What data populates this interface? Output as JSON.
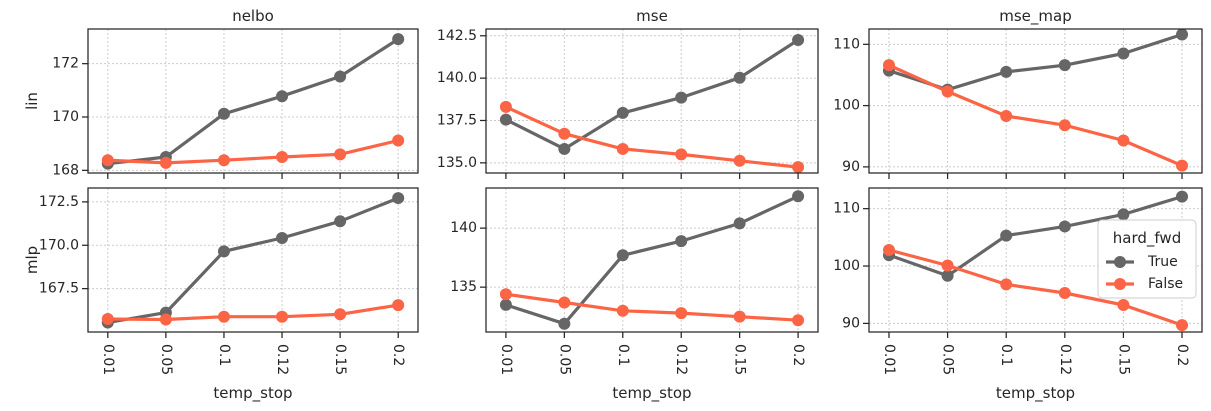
{
  "figure": {
    "xlabel": "temp_stop",
    "row_labels": [
      "lin",
      "mlp"
    ],
    "col_titles": [
      "nelbo",
      "mse",
      "mse_map"
    ]
  },
  "legend": {
    "title": "hard_fwd",
    "entries": [
      {
        "label": "True",
        "color": "#666666"
      },
      {
        "label": "False",
        "color": "#fc6446"
      }
    ]
  },
  "colors": {
    "true": "#666666",
    "false": "#fc6446",
    "grid": "#cccccc",
    "axis": "#262626"
  },
  "chart_data": [
    {
      "type": "line",
      "title": "nelbo",
      "xlabel": "",
      "ylabel": "lin",
      "categories": [
        "0.01",
        "0.05",
        "0.1",
        "0.12",
        "0.15",
        "0.2"
      ],
      "ylim": [
        167.9,
        173.3
      ],
      "yticks": [
        168,
        170,
        172
      ],
      "ytick_labels": [
        "168",
        "170",
        "172"
      ],
      "series": [
        {
          "name": "True",
          "values": [
            168.25,
            168.5,
            170.12,
            170.78,
            171.52,
            172.92
          ]
        },
        {
          "name": "False",
          "values": [
            168.38,
            168.28,
            168.38,
            168.5,
            168.6,
            169.12
          ]
        }
      ]
    },
    {
      "type": "line",
      "title": "mse",
      "xlabel": "",
      "ylabel": "",
      "categories": [
        "0.01",
        "0.05",
        "0.1",
        "0.12",
        "0.15",
        "0.2"
      ],
      "ylim": [
        134.4,
        142.9
      ],
      "yticks": [
        135.0,
        137.5,
        140.0,
        142.5
      ],
      "ytick_labels": [
        "135.0",
        "137.5",
        "140.0",
        "142.5"
      ],
      "series": [
        {
          "name": "True",
          "values": [
            137.55,
            135.82,
            137.95,
            138.85,
            140.02,
            142.25
          ]
        },
        {
          "name": "False",
          "values": [
            138.3,
            136.72,
            135.82,
            135.5,
            135.12,
            134.75
          ]
        }
      ]
    },
    {
      "type": "line",
      "title": "mse_map",
      "xlabel": "",
      "ylabel": "",
      "categories": [
        "0.01",
        "0.05",
        "0.1",
        "0.12",
        "0.15",
        "0.2"
      ],
      "ylim": [
        89.0,
        112.5
      ],
      "yticks": [
        90,
        100,
        110
      ],
      "ytick_labels": [
        "90",
        "100",
        "110"
      ],
      "series": [
        {
          "name": "True",
          "values": [
            105.7,
            102.6,
            105.5,
            106.6,
            108.5,
            111.6
          ]
        },
        {
          "name": "False",
          "values": [
            106.6,
            102.3,
            98.3,
            96.8,
            94.3,
            90.2
          ]
        }
      ]
    },
    {
      "type": "line",
      "title": "",
      "xlabel": "temp_stop",
      "ylabel": "mlp",
      "categories": [
        "0.01",
        "0.05",
        "0.1",
        "0.12",
        "0.15",
        "0.2"
      ],
      "ylim": [
        165.0,
        173.3
      ],
      "yticks": [
        167.5,
        170.0,
        172.5
      ],
      "ytick_labels": [
        "167.5",
        "170.0",
        "172.5"
      ],
      "series": [
        {
          "name": "True",
          "values": [
            165.55,
            166.12,
            169.65,
            170.42,
            171.38,
            172.72
          ]
        },
        {
          "name": "False",
          "values": [
            165.75,
            165.72,
            165.88,
            165.88,
            166.02,
            166.55
          ]
        }
      ]
    },
    {
      "type": "line",
      "title": "",
      "xlabel": "temp_stop",
      "ylabel": "",
      "categories": [
        "0.01",
        "0.05",
        "0.1",
        "0.12",
        "0.15",
        "0.2"
      ],
      "ylim": [
        131.2,
        143.4
      ],
      "yticks": [
        135,
        140
      ],
      "ytick_labels": [
        "135",
        "140"
      ],
      "series": [
        {
          "name": "True",
          "values": [
            133.5,
            131.9,
            137.7,
            138.9,
            140.4,
            142.7
          ]
        },
        {
          "name": "False",
          "values": [
            134.4,
            133.7,
            133.0,
            132.8,
            132.5,
            132.2
          ]
        }
      ]
    },
    {
      "type": "line",
      "title": "",
      "xlabel": "temp_stop",
      "ylabel": "",
      "categories": [
        "0.01",
        "0.05",
        "0.1",
        "0.12",
        "0.15",
        "0.2"
      ],
      "ylim": [
        88.5,
        113.6
      ],
      "yticks": [
        90,
        100,
        110
      ],
      "ytick_labels": [
        "90",
        "100",
        "110"
      ],
      "series": [
        {
          "name": "True",
          "values": [
            101.9,
            98.3,
            105.3,
            106.9,
            109.0,
            112.1
          ]
        },
        {
          "name": "False",
          "values": [
            102.8,
            100.1,
            96.8,
            95.3,
            93.2,
            89.7
          ]
        }
      ]
    }
  ]
}
